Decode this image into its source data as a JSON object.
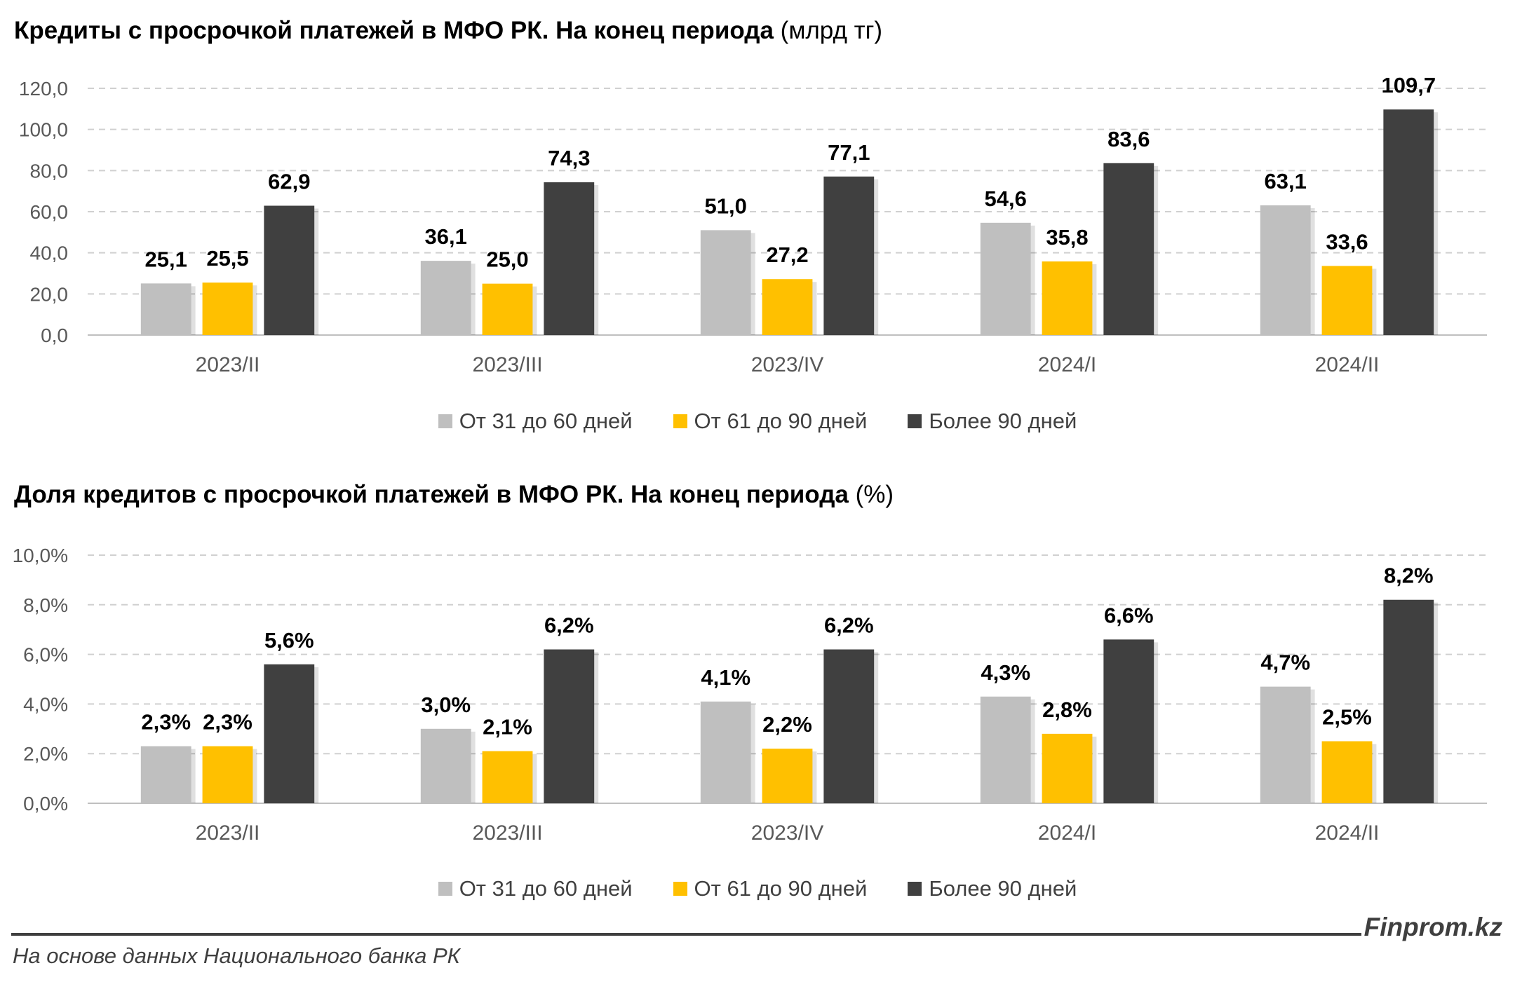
{
  "charts": [
    {
      "title_main": "Кредиты с просрочкой платежей в МФО РК. На конец периода",
      "title_unit": "(млрд тг)"
    },
    {
      "title_main": "Доля кредитов с просрочкой платежей в МФО РК. На конец периода",
      "title_unit": "(%)"
    }
  ],
  "legend": [
    {
      "label": "От 31 до 60 дней",
      "color": "#bfbfbf"
    },
    {
      "label": "От 61 до 90 дней",
      "color": "#ffc000"
    },
    {
      "label": "Более 90 дней",
      "color": "#404040"
    }
  ],
  "footer": {
    "brand": "Finprom.kz",
    "source": "На основе данных Национального банка РК"
  },
  "chart_data": [
    {
      "type": "bar",
      "title": "Кредиты с просрочкой платежей в МФО РК. На конец периода (млрд тг)",
      "categories": [
        "2023/II",
        "2023/III",
        "2023/IV",
        "2024/I",
        "2024/II"
      ],
      "series": [
        {
          "name": "От 31 до 60 дней",
          "values": [
            25.1,
            36.1,
            51.0,
            54.6,
            63.1
          ],
          "labels": [
            "25,1",
            "36,1",
            "51,0",
            "54,6",
            "63,1"
          ]
        },
        {
          "name": "От 61 до 90 дней",
          "values": [
            25.5,
            25.0,
            27.2,
            35.8,
            33.6
          ],
          "labels": [
            "25,5",
            "25,0",
            "27,2",
            "35,8",
            "33,6"
          ]
        },
        {
          "name": "Более 90 дней",
          "values": [
            62.9,
            74.3,
            77.1,
            83.6,
            109.7
          ],
          "labels": [
            "62,9",
            "74,3",
            "77,1",
            "83,6",
            "109,7"
          ]
        }
      ],
      "ylim": [
        0,
        120
      ],
      "yticks": [
        "0,0",
        "20,0",
        "40,0",
        "60,0",
        "80,0",
        "100,0",
        "120,0"
      ],
      "grid": true,
      "legend_position": "bottom"
    },
    {
      "type": "bar",
      "title": "Доля кредитов с просрочкой платежей в МФО РК. На конец периода (%)",
      "categories": [
        "2023/II",
        "2023/III",
        "2023/IV",
        "2024/I",
        "2024/II"
      ],
      "series": [
        {
          "name": "От 31 до 60 дней",
          "values": [
            2.3,
            3.0,
            4.1,
            4.3,
            4.7
          ],
          "labels": [
            "2,3%",
            "3,0%",
            "4,1%",
            "4,3%",
            "4,7%"
          ]
        },
        {
          "name": "От 61 до 90 дней",
          "values": [
            2.3,
            2.1,
            2.2,
            2.8,
            2.5
          ],
          "labels": [
            "2,3%",
            "2,1%",
            "2,2%",
            "2,8%",
            "2,5%"
          ]
        },
        {
          "name": "Более 90 дней",
          "values": [
            5.6,
            6.2,
            6.2,
            6.6,
            8.2
          ],
          "labels": [
            "5,6%",
            "6,2%",
            "6,2%",
            "6,6%",
            "8,2%"
          ]
        }
      ],
      "ylim": [
        0,
        10
      ],
      "yticks": [
        "0,0%",
        "2,0%",
        "4,0%",
        "6,0%",
        "8,0%",
        "10,0%"
      ],
      "grid": true,
      "legend_position": "bottom"
    }
  ]
}
